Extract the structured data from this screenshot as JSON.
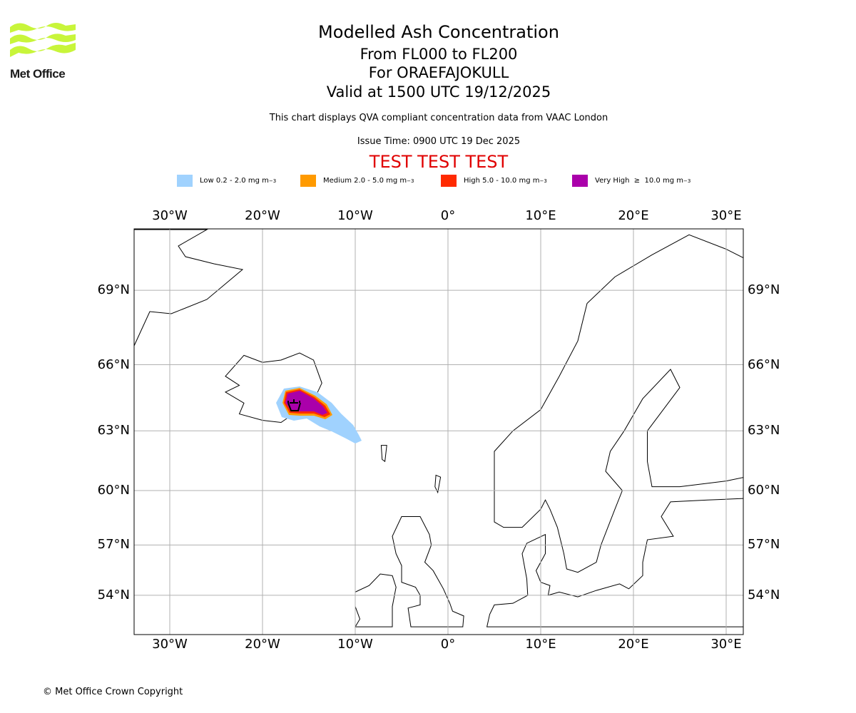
{
  "logo": {
    "text": "Met Office",
    "color": "#c8f53a"
  },
  "title": "Modelled Ash Concentration",
  "subtitle_levels": "From FL000 to FL200",
  "subtitle_volcano": "For ORAEFAJOKULL",
  "subtitle_valid": "Valid at 1500 UTC 19/12/2025",
  "description": "This chart displays QVA compliant concentration data from VAAC London",
  "issue_time": "Issue Time: 0900 UTC 19 Dec 2025",
  "test_banner": "TEST TEST TEST",
  "legend": [
    {
      "label": "Low 0.2 - 2.0 mg m",
      "exp": "−3",
      "color": "#a0d2fe"
    },
    {
      "label": "Medium 2.0 - 5.0 mg m",
      "exp": "−3",
      "color": "#ff9a00"
    },
    {
      "label": "High 5.0 - 10.0 mg m",
      "exp": "−3",
      "color": "#ff2a00"
    },
    {
      "label": "Very High  ≥  10.0 mg m",
      "exp": "−3",
      "color": "#aa00aa"
    }
  ],
  "map": {
    "lon_ticks": [
      {
        "v": -30,
        "label": "30°W"
      },
      {
        "v": -20,
        "label": "20°W"
      },
      {
        "v": -10,
        "label": "10°W"
      },
      {
        "v": 0,
        "label": "0°"
      },
      {
        "v": 10,
        "label": "10°E"
      },
      {
        "v": 20,
        "label": "20°E"
      },
      {
        "v": 30,
        "label": "30°E"
      }
    ],
    "lat_ticks": [
      {
        "v": 69,
        "label": "69°N"
      },
      {
        "v": 66,
        "label": "66°N"
      },
      {
        "v": 63,
        "label": "63°N"
      },
      {
        "v": 60,
        "label": "60°N"
      },
      {
        "v": 57,
        "label": "57°N"
      },
      {
        "v": 54,
        "label": "54°N"
      }
    ],
    "extent": {
      "lon": [
        -34,
        32
      ],
      "lat": [
        52.3,
        71.5
      ]
    }
  },
  "copyright": "© Met Office Crown Copyright"
}
